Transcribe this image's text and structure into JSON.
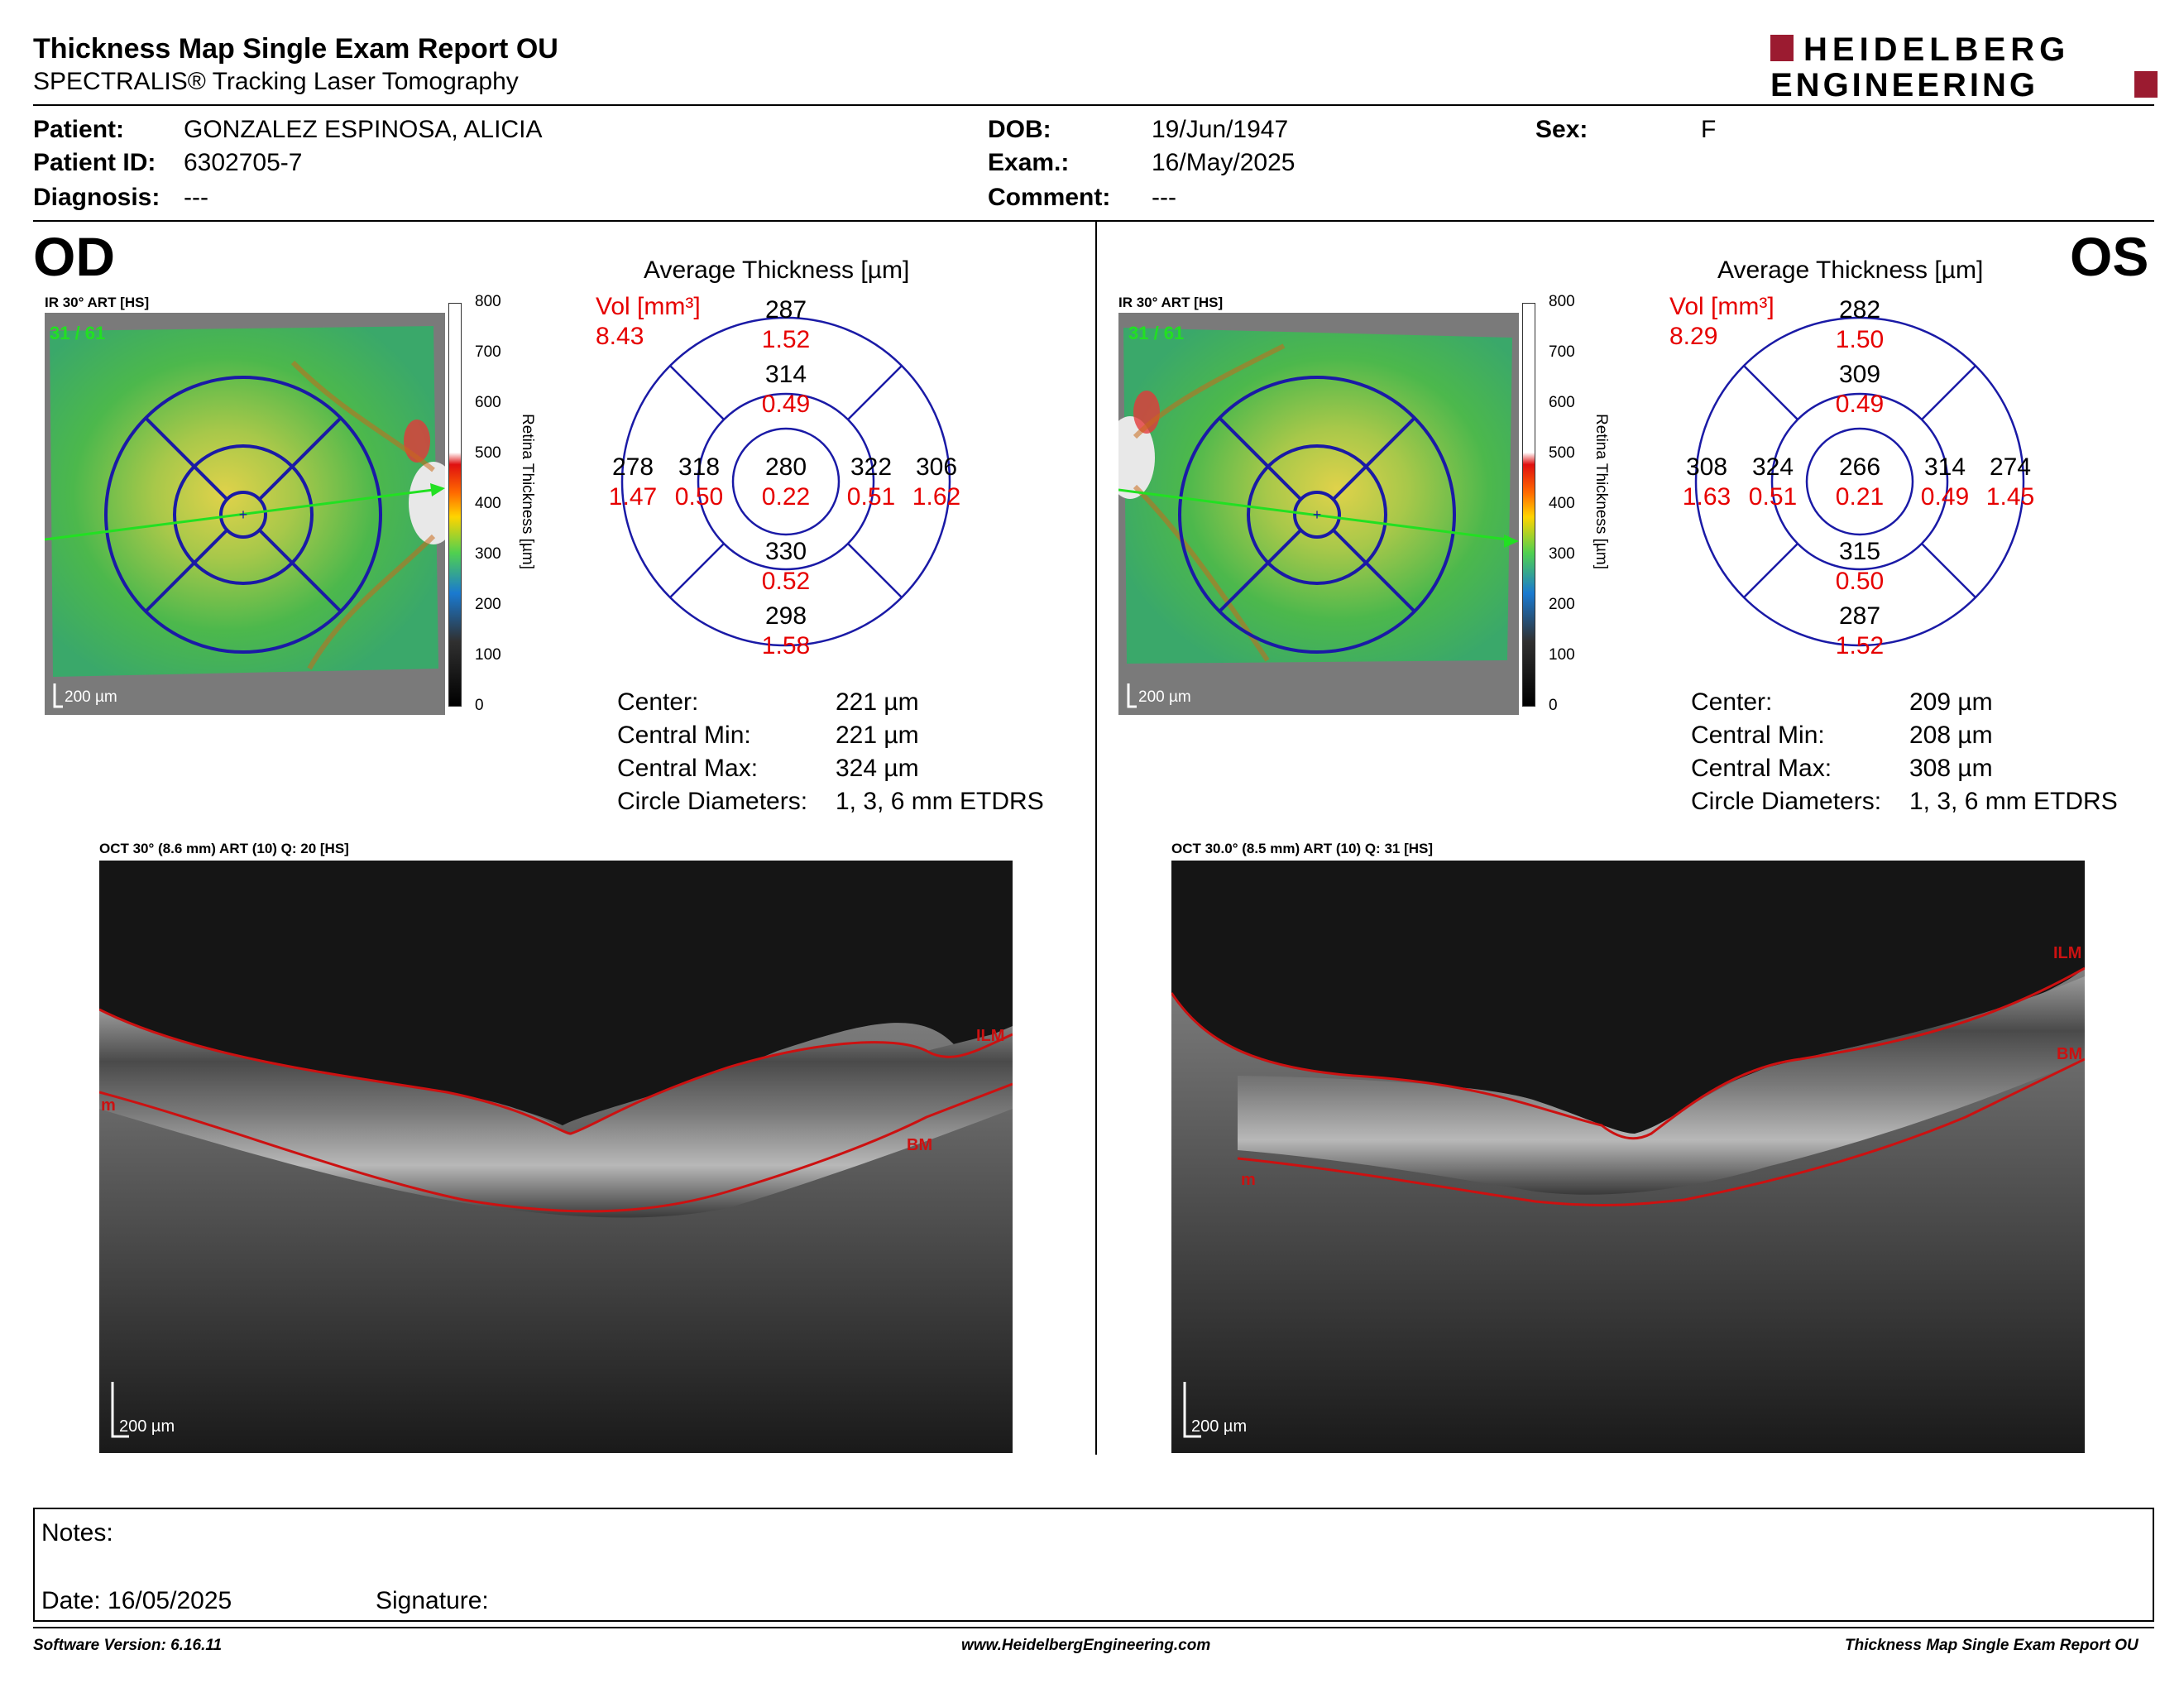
{
  "header": {
    "title": "Thickness Map Single Exam Report OU",
    "subtitle": "SPECTRALIS® Tracking Laser Tomography",
    "logo_line1": "HEIDELBERG",
    "logo_line2": "ENGINEERING"
  },
  "patient": {
    "patient_label": "Patient:",
    "patient_value": "GONZALEZ ESPINOSA, ALICIA",
    "id_label": "Patient ID:",
    "id_value": "6302705-7",
    "diagnosis_label": "Diagnosis:",
    "diagnosis_value": "---",
    "dob_label": "DOB:",
    "dob_value": "19/Jun/1947",
    "exam_label": "Exam.:",
    "exam_value": "16/May/2025",
    "comment_label": "Comment:",
    "comment_value": "---",
    "sex_label": "Sex:",
    "sex_value": "F"
  },
  "scale": {
    "ticks": [
      "800",
      "700",
      "600",
      "500",
      "400",
      "300",
      "200",
      "100",
      "0"
    ],
    "title": "Retina  Thickness [µm]"
  },
  "od": {
    "eye": "OD",
    "ir_label": "IR 30° ART [HS]",
    "frame": "31 / 61",
    "scalebar": "200 µm",
    "avg_title": "Average Thickness [µm]",
    "vol_label": "Vol [mm³]",
    "vol_total": "8.43",
    "etdrs": {
      "center": {
        "t": "280",
        "v": "0.22"
      },
      "inner_sup": {
        "t": "314",
        "v": "0.49"
      },
      "inner_inf": {
        "t": "330",
        "v": "0.52"
      },
      "inner_left": {
        "t": "318",
        "v": "0.50"
      },
      "inner_right": {
        "t": "322",
        "v": "0.51"
      },
      "outer_sup": {
        "t": "287",
        "v": "1.52"
      },
      "outer_inf": {
        "t": "298",
        "v": "1.58"
      },
      "outer_left": {
        "t": "278",
        "v": "1.47"
      },
      "outer_right": {
        "t": "306",
        "v": "1.62"
      }
    },
    "stats": {
      "center_label": "Center:",
      "center_value": "221 µm",
      "min_label": "Central Min:",
      "min_value": "221 µm",
      "max_label": "Central Max:",
      "max_value": "324 µm",
      "diam_label": "Circle Diameters:",
      "diam_value": "1, 3, 6 mm ETDRS"
    },
    "oct_label": "OCT 30° (8.6 mm) ART (10) Q: 20 [HS]",
    "oct_scalebar": "200 µm",
    "layer_ilm": "ILM",
    "layer_bm": "BM",
    "layer_m": "m"
  },
  "os": {
    "eye": "OS",
    "ir_label": "IR 30° ART [HS]",
    "frame": "31 / 61",
    "scalebar": "200 µm",
    "avg_title": "Average Thickness [µm]",
    "vol_label": "Vol [mm³]",
    "vol_total": "8.29",
    "etdrs": {
      "center": {
        "t": "266",
        "v": "0.21"
      },
      "inner_sup": {
        "t": "309",
        "v": "0.49"
      },
      "inner_inf": {
        "t": "315",
        "v": "0.50"
      },
      "inner_left": {
        "t": "324",
        "v": "0.51"
      },
      "inner_right": {
        "t": "314",
        "v": "0.49"
      },
      "outer_sup": {
        "t": "282",
        "v": "1.50"
      },
      "outer_inf": {
        "t": "287",
        "v": "1.52"
      },
      "outer_left": {
        "t": "308",
        "v": "1.63"
      },
      "outer_right": {
        "t": "274",
        "v": "1.45"
      }
    },
    "stats": {
      "center_label": "Center:",
      "center_value": "209 µm",
      "min_label": "Central Min:",
      "min_value": "208 µm",
      "max_label": "Central Max:",
      "max_value": "308 µm",
      "diam_label": "Circle Diameters:",
      "diam_value": "1, 3, 6 mm ETDRS"
    },
    "oct_label": "OCT 30.0° (8.5 mm) ART (10) Q: 31 [HS]",
    "oct_scalebar": "200 µm",
    "layer_ilm": "ILM",
    "layer_bm": "BM",
    "layer_m": "m"
  },
  "notes": {
    "notes_label": "Notes:",
    "date_label": "Date: 16/05/2025",
    "signature_label": "Signature:"
  },
  "footer": {
    "software": "Software Version: 6.16.11",
    "website": "www.HeidelbergEngineering.com",
    "report": "Thickness Map Single Exam Report OU"
  },
  "colors": {
    "etdrs_blue": "#1a1aa6",
    "vol_red": "#e60000",
    "logo_red": "#9b1b30",
    "bm_line": "#cc1111"
  }
}
